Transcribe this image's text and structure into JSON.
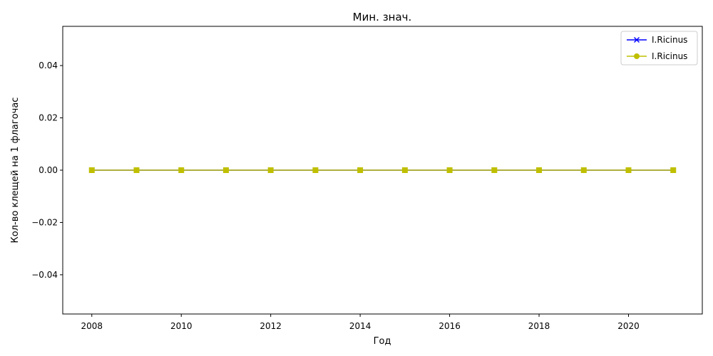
{
  "chart_data": {
    "type": "line",
    "title": "Мин. знач.",
    "xlabel": "Год",
    "ylabel": "Кол-во клещей на 1 флагочас",
    "x": [
      2008,
      2009,
      2010,
      2011,
      2012,
      2013,
      2014,
      2015,
      2016,
      2017,
      2018,
      2019,
      2020,
      2021
    ],
    "xticks": [
      2008,
      2010,
      2012,
      2014,
      2016,
      2018,
      2020
    ],
    "xlim": [
      2007.35,
      2021.65
    ],
    "yticks": [
      -0.04,
      -0.02,
      0.0,
      0.02,
      0.04
    ],
    "ytick_labels": [
      "−0.04",
      "−0.02",
      "0.00",
      "0.02",
      "0.04"
    ],
    "ylim": [
      -0.055,
      0.055
    ],
    "grid": false,
    "legend_position": "top-right",
    "series": [
      {
        "name": "I.Ricinus",
        "color": "#0000ff",
        "marker": "x",
        "values": [
          0,
          0,
          0,
          0,
          0,
          0,
          0,
          0,
          0,
          0,
          0,
          0,
          0,
          0
        ]
      },
      {
        "name": "I.Ricinus",
        "color": "#bfbf00",
        "marker": "o",
        "values": [
          0,
          0,
          0,
          0,
          0,
          0,
          0,
          0,
          0,
          0,
          0,
          0,
          0,
          0
        ]
      }
    ]
  }
}
